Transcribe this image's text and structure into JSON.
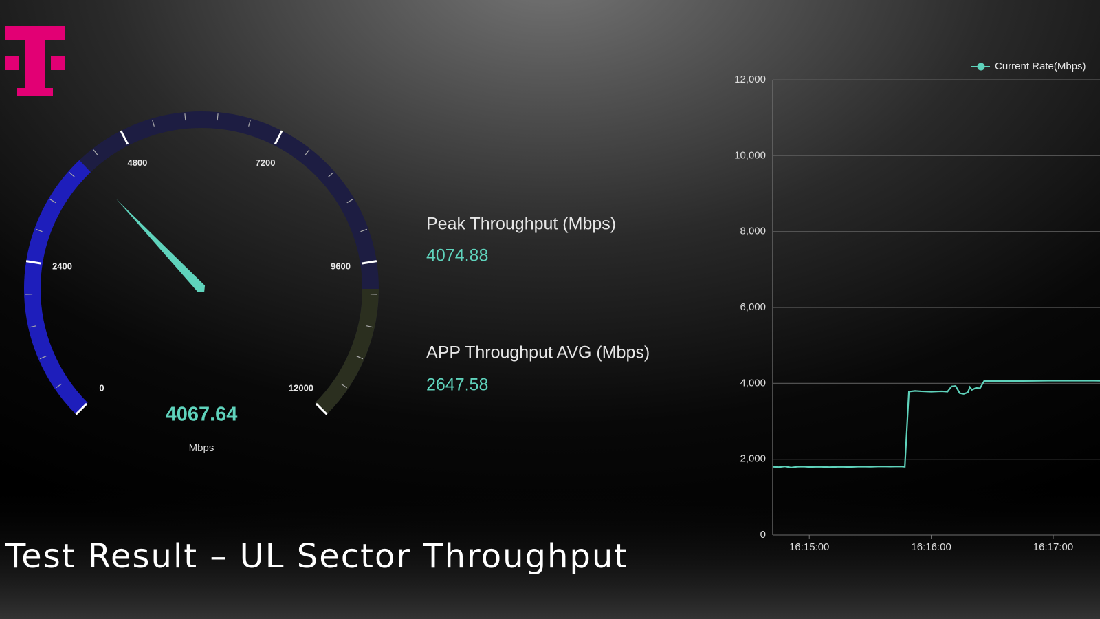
{
  "title": "Test Result – UL Sector Throughput",
  "gauge": {
    "range": [
      0,
      12000
    ],
    "ticks": [
      0,
      2400,
      4800,
      7200,
      9600,
      12000
    ],
    "value": 4067.64,
    "unit": "Mbps"
  },
  "stats": [
    {
      "label": "Peak Throughput (Mbps)",
      "value": 4074.88
    },
    {
      "label": "APP Throughput AVG (Mbps)",
      "value": 2647.58
    }
  ],
  "chart_data": {
    "type": "line",
    "x": [
      "16:14:42",
      "16:14:45",
      "16:14:48",
      "16:14:51",
      "16:14:54",
      "16:14:57",
      "16:15:00",
      "16:15:05",
      "16:15:10",
      "16:15:15",
      "16:15:20",
      "16:15:25",
      "16:15:30",
      "16:15:35",
      "16:15:40",
      "16:15:45",
      "16:15:47",
      "16:15:49",
      "16:15:52",
      "16:15:55",
      "16:16:00",
      "16:16:05",
      "16:16:08",
      "16:16:10",
      "16:16:12",
      "16:16:14",
      "16:16:16",
      "16:16:18",
      "16:16:19",
      "16:16:20",
      "16:16:22",
      "16:16:24",
      "16:16:26",
      "16:16:30",
      "16:16:40",
      "16:16:50",
      "16:17:00",
      "16:17:10",
      "16:17:20",
      "16:17:23"
    ],
    "series": [
      {
        "name": "Current Rate(Mbps)",
        "color": "#5fd3bc",
        "values": [
          1800,
          1790,
          1810,
          1780,
          1800,
          1805,
          1795,
          1800,
          1790,
          1800,
          1795,
          1805,
          1800,
          1810,
          1805,
          1810,
          1800,
          3780,
          3800,
          3790,
          3780,
          3790,
          3780,
          3920,
          3930,
          3740,
          3720,
          3760,
          3900,
          3830,
          3880,
          3870,
          4060,
          4065,
          4060,
          4065,
          4070,
          4068,
          4070,
          4067
        ]
      }
    ],
    "xlim": [
      "16:14:42",
      "16:17:23"
    ],
    "xticks": [
      "16:15:00",
      "16:16:00",
      "16:17:00"
    ],
    "ylim": [
      0,
      12000
    ],
    "yticks": [
      0,
      {
        "value": 2000,
        "label": "2,000"
      },
      {
        "value": 4000,
        "label": "4,000"
      },
      {
        "value": 6000,
        "label": "6,000"
      },
      {
        "value": 8000,
        "label": "8,000"
      },
      {
        "value": 10000,
        "label": "10,000"
      },
      {
        "value": 12000,
        "label": "12,000"
      }
    ],
    "grid": true
  }
}
